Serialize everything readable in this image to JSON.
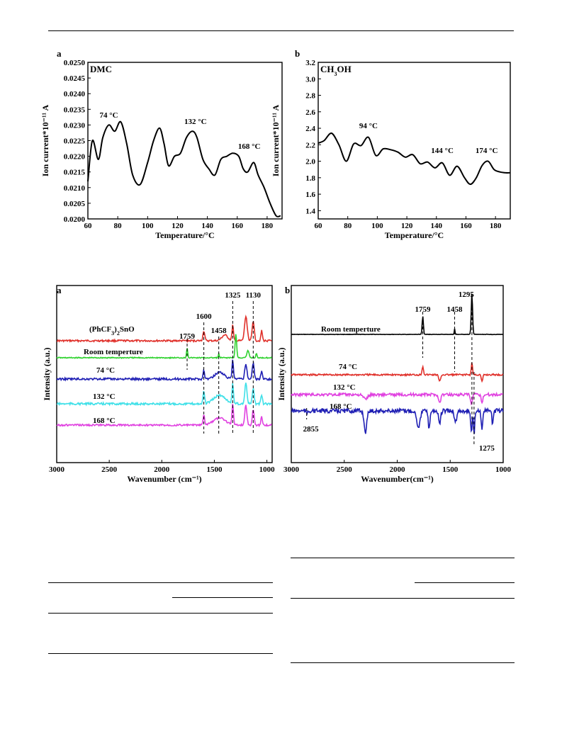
{
  "chart_data": [
    {
      "type": "line",
      "panel": "a",
      "inner_label": "DMC",
      "xlabel": "Temperature/°C",
      "ylabel": "Ion current*10⁻¹¹ A",
      "xlim": [
        60,
        190
      ],
      "ylim": [
        0.02,
        0.025
      ],
      "xticks": [
        60,
        80,
        100,
        120,
        140,
        160,
        180
      ],
      "yticks": [
        "0.0200",
        "0.0205",
        "0.0210",
        "0.0215",
        "0.0220",
        "0.0225",
        "0.0230",
        "0.0235",
        "0.0240",
        "0.0245",
        "0.0250"
      ],
      "annotations": [
        {
          "text": "74 °C",
          "x": 74,
          "y": 0.0231
        },
        {
          "text": "132 °C",
          "x": 132,
          "y": 0.0229
        },
        {
          "text": "168 °C",
          "x": 168,
          "y": 0.0221
        }
      ],
      "x": [
        60,
        63,
        67,
        70,
        74,
        78,
        82,
        86,
        90,
        95,
        100,
        104,
        108,
        111,
        114,
        118,
        122,
        126,
        130,
        133,
        137,
        141,
        145,
        149,
        153,
        157,
        161,
        164,
        167,
        171,
        174,
        178,
        182,
        186,
        189
      ],
      "y": [
        0.0212,
        0.0225,
        0.0219,
        0.0226,
        0.023,
        0.0228,
        0.0231,
        0.0224,
        0.0214,
        0.0211,
        0.0218,
        0.0225,
        0.0229,
        0.0224,
        0.0217,
        0.022,
        0.0221,
        0.0226,
        0.0228,
        0.0226,
        0.0219,
        0.0216,
        0.0214,
        0.0219,
        0.022,
        0.0221,
        0.022,
        0.0216,
        0.0215,
        0.0218,
        0.0214,
        0.021,
        0.0205,
        0.0201,
        0.0201
      ]
    },
    {
      "type": "line",
      "panel": "b",
      "inner_label": "CH₃OH",
      "xlabel": "Temperature/°C",
      "ylabel": "Ion current*10⁻¹¹ A",
      "xlim": [
        60,
        190
      ],
      "ylim": [
        1.3,
        3.2
      ],
      "xticks": [
        60,
        80,
        100,
        120,
        140,
        160,
        180
      ],
      "yticks": [
        "1.4",
        "1.6",
        "1.8",
        "2.0",
        "2.2",
        "2.4",
        "2.6",
        "2.8",
        "3.0",
        "3.2"
      ],
      "annotations": [
        {
          "text": "94 °C",
          "x": 94,
          "y": 2.35
        },
        {
          "text": "144 °C",
          "x": 144,
          "y": 2.05
        },
        {
          "text": "174 °C",
          "x": 174,
          "y": 2.05
        }
      ],
      "x": [
        60,
        64,
        69,
        74,
        79,
        84,
        89,
        94,
        99,
        104,
        109,
        114,
        119,
        124,
        129,
        134,
        139,
        144,
        149,
        154,
        159,
        163,
        167,
        171,
        175,
        179,
        183,
        187,
        190
      ],
      "y": [
        2.22,
        2.25,
        2.34,
        2.2,
        2.0,
        2.21,
        2.19,
        2.29,
        2.07,
        2.15,
        2.14,
        2.11,
        2.05,
        2.08,
        1.97,
        1.99,
        1.92,
        1.98,
        1.83,
        1.94,
        1.8,
        1.72,
        1.8,
        1.95,
        2.0,
        1.9,
        1.87,
        1.86,
        1.86
      ]
    },
    {
      "type": "line",
      "panel": "a",
      "xlabel": "Wavenumber (cm⁻¹)",
      "ylabel": "Intensity (a.u.)",
      "xlim": [
        3000,
        950
      ],
      "xticks": [
        3000,
        2500,
        2000,
        1500,
        1000
      ],
      "markers": [
        1759,
        1600,
        1458,
        1325,
        1130
      ],
      "series": [
        {
          "name": "(PhCF₃)₂SnO",
          "color": "#e0302a"
        },
        {
          "name": "Room temperture",
          "color": "#2fd22f"
        },
        {
          "name": "74 °C",
          "color": "#1f1fb4"
        },
        {
          "name": "132 °C",
          "color": "#3fe0e8"
        },
        {
          "name": "168 °C",
          "color": "#e040e0"
        }
      ]
    },
    {
      "type": "line",
      "panel": "b",
      "xlabel": "Wavenumber(cm⁻¹)",
      "ylabel": "Intensity (a.u.)",
      "xlim": [
        3000,
        1000
      ],
      "xticks": [
        3000,
        2500,
        2000,
        1500,
        1000
      ],
      "markers": [
        2855,
        1759,
        1458,
        1295,
        1275
      ],
      "series": [
        {
          "name": "Room temperture",
          "color": "#000000"
        },
        {
          "name": "74 °C",
          "color": "#e0302a"
        },
        {
          "name": "132 °C",
          "color": "#e040e0"
        },
        {
          "name": "168 °C",
          "color": "#1f1fb4"
        }
      ]
    }
  ]
}
